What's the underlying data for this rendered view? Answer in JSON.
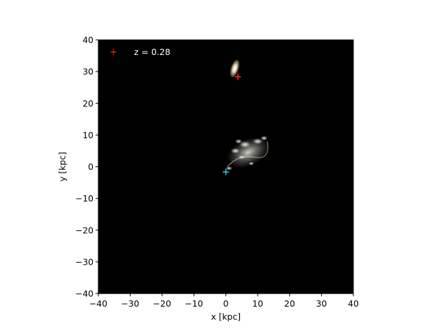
{
  "chart_data": {
    "type": "scatter",
    "title": "",
    "xlabel": "x [kpc]",
    "ylabel": "y [kpc]",
    "xlim": [
      -40,
      40
    ],
    "ylim": [
      -40,
      40
    ],
    "xticks": [
      -40,
      -30,
      -20,
      -10,
      0,
      10,
      20,
      30,
      40
    ],
    "yticks": [
      -40,
      -30,
      -20,
      -10,
      0,
      10,
      20,
      30,
      40
    ],
    "xtick_labels": [
      "−40",
      "−30",
      "−20",
      "−10",
      "0",
      "10",
      "20",
      "30",
      "40"
    ],
    "ytick_labels": [
      "−40",
      "−30",
      "−20",
      "−10",
      "0",
      "10",
      "20",
      "30",
      "40"
    ],
    "background": "#000000",
    "grid": false,
    "legend": {
      "placement": "top-left",
      "entries": [
        {
          "label": "z = 0.28",
          "marker": "+",
          "color": "#ff2020"
        }
      ]
    },
    "markers": [
      {
        "name": "red-cross",
        "x": 3.8,
        "y": 28.5,
        "color": "#ff2020"
      },
      {
        "name": "cyan-cross",
        "x": 0.0,
        "y": -1.5,
        "color": "#22cccc"
      }
    ],
    "galaxies": [
      {
        "name": "satellite-galaxy",
        "x": 2.8,
        "y": 31.0,
        "rx": 1.4,
        "ry": 3.3,
        "rotate_deg": 18,
        "color": "#f3e6cc"
      },
      {
        "name": "main-galaxy",
        "x": 7.0,
        "y": 4.5,
        "rx": 7.5,
        "ry": 4.5,
        "rotate_deg": -25,
        "color": "#c8c8c0"
      }
    ]
  }
}
